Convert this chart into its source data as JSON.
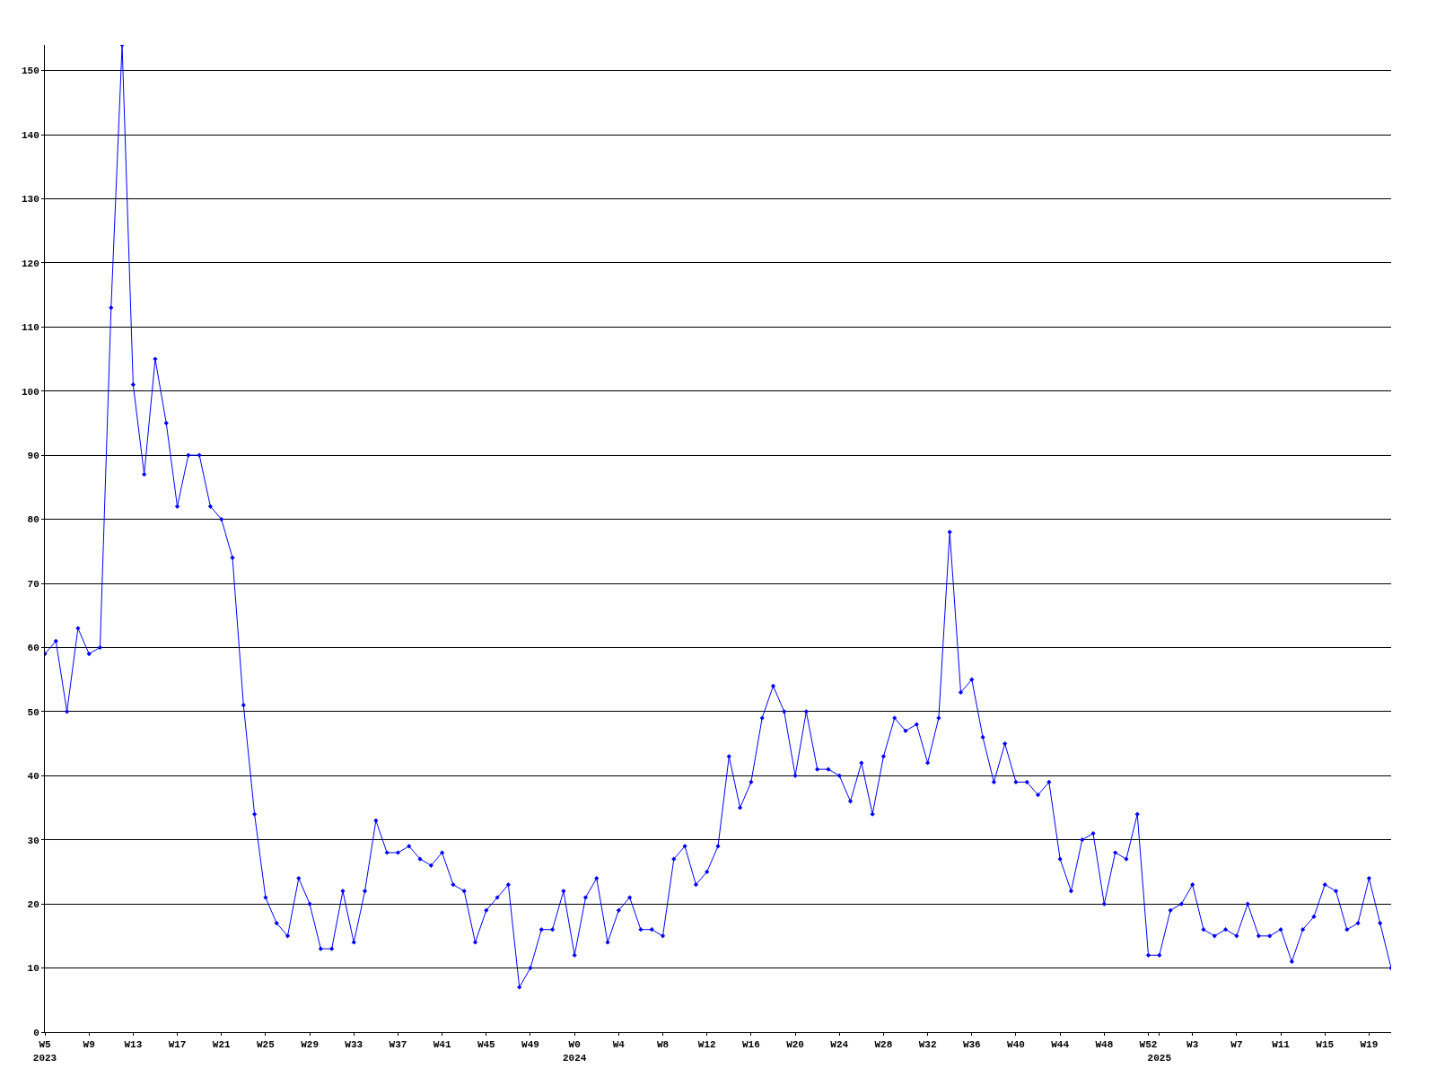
{
  "chart_data": {
    "type": "line",
    "categories": [
      "W5\n2023",
      null,
      null,
      null,
      "W9",
      null,
      null,
      null,
      "W13",
      null,
      null,
      null,
      "W17",
      null,
      null,
      null,
      "W21",
      null,
      null,
      null,
      "W25",
      null,
      null,
      null,
      "W29",
      null,
      null,
      null,
      "W33",
      null,
      null,
      null,
      "W37",
      null,
      null,
      null,
      "W41",
      null,
      null,
      null,
      "W45",
      null,
      null,
      null,
      "W49",
      null,
      null,
      null,
      "W0\n2024",
      null,
      null,
      null,
      "W4",
      null,
      null,
      null,
      "W8",
      null,
      null,
      null,
      "W12",
      null,
      null,
      null,
      "W16",
      null,
      null,
      null,
      "W20",
      null,
      null,
      null,
      "W24",
      null,
      null,
      null,
      "W28",
      null,
      null,
      null,
      "W32",
      null,
      null,
      null,
      "W36",
      null,
      null,
      null,
      "W40",
      null,
      null,
      null,
      "W44",
      null,
      null,
      null,
      "W48",
      null,
      null,
      null,
      "W52",
      "\n2025",
      null,
      null,
      "W3",
      null,
      null,
      null,
      "W7",
      null,
      null,
      null,
      "W11",
      null,
      null,
      null,
      "W15",
      null,
      null,
      null,
      "W19",
      null,
      null
    ],
    "series": [
      {
        "color": "#0000ff",
        "values": [
          59,
          61,
          50,
          63,
          59,
          60,
          113,
          154,
          101,
          87,
          105,
          95,
          82,
          90,
          90,
          82,
          80,
          74,
          51,
          34,
          21,
          17,
          15,
          24,
          20,
          13,
          13,
          22,
          14,
          22,
          33,
          28,
          28,
          29,
          27,
          26,
          28,
          23,
          22,
          14,
          19,
          21,
          23,
          7,
          10,
          16,
          16,
          22,
          12,
          21,
          24,
          14,
          19,
          21,
          16,
          16,
          15,
          27,
          29,
          23,
          25,
          29,
          43,
          35,
          39,
          49,
          54,
          50,
          40,
          50,
          41,
          41,
          40,
          36,
          42,
          34,
          43,
          49,
          47,
          48,
          42,
          49,
          78,
          53,
          55,
          46,
          39,
          45,
          39,
          39,
          37,
          39,
          27,
          22,
          30,
          31,
          20,
          28,
          27,
          34,
          12,
          12,
          19,
          20,
          23,
          16,
          15,
          16,
          15,
          20,
          15,
          15,
          16,
          11,
          16,
          18,
          23,
          22,
          16,
          17,
          24,
          17,
          10
        ]
      }
    ],
    "ylim": [
      0,
      154
    ],
    "yticks": [
      0,
      10,
      20,
      30,
      40,
      50,
      60,
      70,
      80,
      90,
      100,
      110,
      120,
      130,
      140,
      150
    ],
    "grid": "y",
    "marker": "diamond",
    "line_style": "solid"
  }
}
